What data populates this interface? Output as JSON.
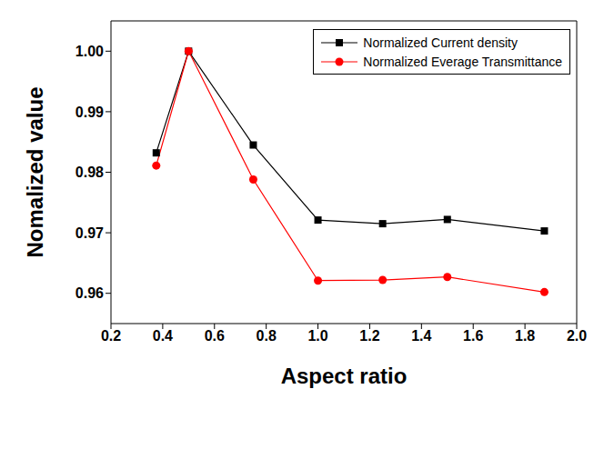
{
  "chart_data": {
    "type": "line",
    "x_label": "Aspect ratio",
    "y_label": "Nomalized value",
    "x": [
      0.375,
      0.5,
      0.75,
      1.0,
      1.25,
      1.5,
      1.875
    ],
    "series": [
      {
        "name": "Normalized Current density",
        "color": "#000000",
        "marker": "square",
        "line_style": "solid",
        "values": [
          0.9832,
          1.0,
          0.9845,
          0.9721,
          0.9715,
          0.9722,
          0.9703
        ]
      },
      {
        "name": "Normalized Everage Transmittance",
        "color": "#ff0000",
        "marker": "circle",
        "line_style": "solid",
        "values": [
          0.9811,
          1.0,
          0.9788,
          0.9621,
          0.9622,
          0.9627,
          0.9602
        ]
      }
    ],
    "xlim": [
      0.2,
      2.0
    ],
    "xticks": [
      0.2,
      0.4,
      0.6,
      0.8,
      {
        "value": 1.0,
        "label": "1.0"
      },
      1.2,
      1.4,
      1.6,
      1.8,
      {
        "value": 2.0,
        "label": "2.0"
      }
    ],
    "ylim": [
      0.955,
      1.005
    ],
    "yticks": [
      0.96,
      0.97,
      0.98,
      0.99,
      {
        "value": 1.0,
        "label": "1.00"
      }
    ],
    "legend": "upper right",
    "grid": false
  }
}
